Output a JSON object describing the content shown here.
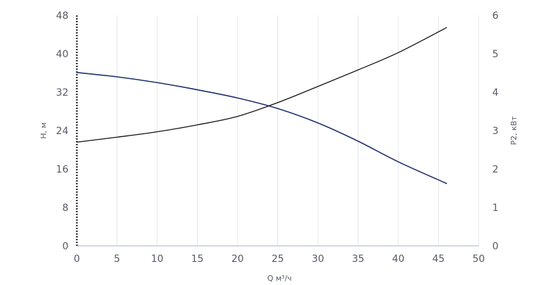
{
  "chart_data": {
    "type": "line",
    "xlabel": "Q м³/ч",
    "ylabel_left": "H, м",
    "ylabel_right": "P2, кВт",
    "xlim": [
      0,
      50
    ],
    "ylim_left": [
      0,
      48
    ],
    "ylim_right": [
      0,
      6
    ],
    "x_ticks": [
      0,
      5,
      10,
      15,
      20,
      25,
      30,
      35,
      40,
      45,
      50
    ],
    "y_left_ticks": [
      0,
      8,
      16,
      24,
      32,
      40,
      48
    ],
    "y_right_ticks": [
      0,
      1,
      2,
      3,
      4,
      5,
      6
    ],
    "grid": "vertical",
    "series": [
      {
        "axis": "left",
        "color": "#1f2f6e",
        "points": [
          [
            0,
            36.1
          ],
          [
            5,
            35.2
          ],
          [
            10,
            34.0
          ],
          [
            15,
            32.5
          ],
          [
            20,
            30.8
          ],
          [
            25,
            28.6
          ],
          [
            30,
            25.6
          ],
          [
            35,
            21.8
          ],
          [
            40,
            17.5
          ],
          [
            46,
            13.0
          ]
        ]
      },
      {
        "axis": "right",
        "color": "#111111",
        "points": [
          [
            0,
            2.7
          ],
          [
            5,
            2.83
          ],
          [
            10,
            2.97
          ],
          [
            15,
            3.15
          ],
          [
            20,
            3.37
          ],
          [
            25,
            3.73
          ],
          [
            30,
            4.15
          ],
          [
            35,
            4.58
          ],
          [
            40,
            5.03
          ],
          [
            46,
            5.68
          ]
        ]
      }
    ],
    "colors": {
      "axis": "#c6ccd8",
      "grid": "#e6e7ea",
      "text": "#555a66",
      "left_axis_line": "#333333"
    }
  }
}
